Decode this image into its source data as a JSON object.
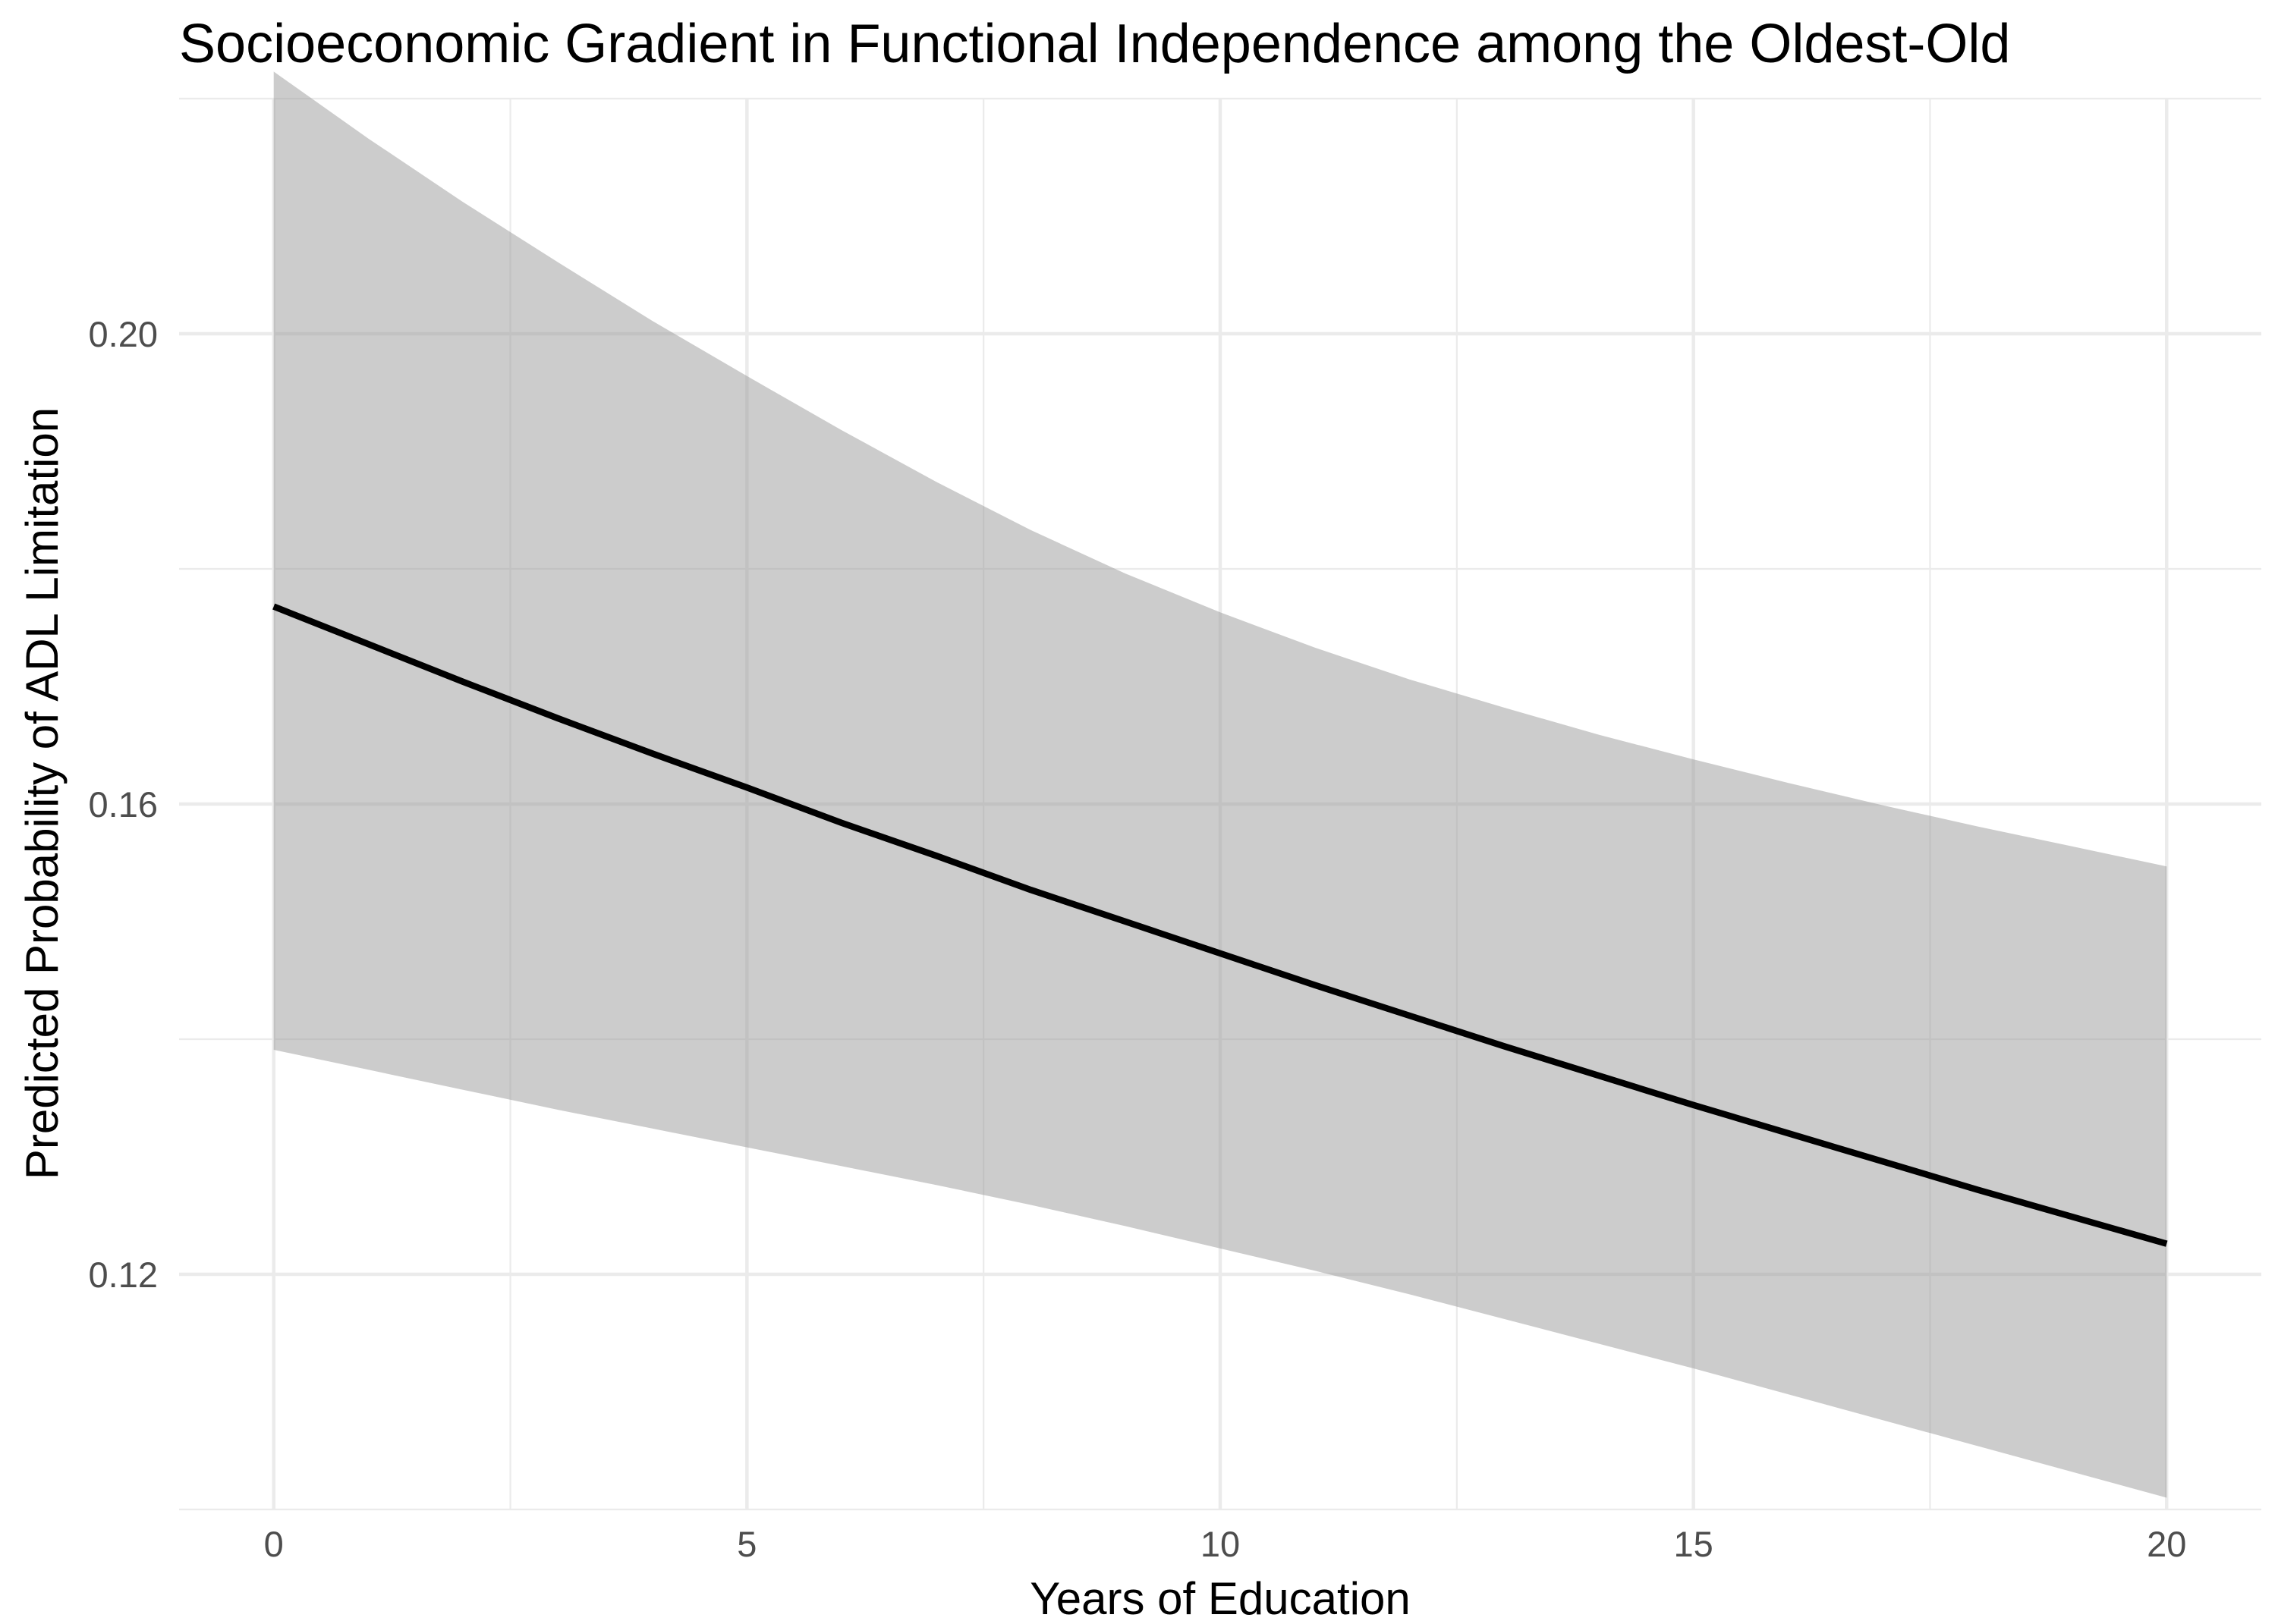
{
  "chart_data": {
    "type": "line",
    "title": "Socioeconomic Gradient in Functional Independence among the Oldest-Old",
    "xlabel": "Years of Education",
    "ylabel": "Predicted Probability of ADL Limitation",
    "xlim": [
      -1,
      21
    ],
    "ylim": [
      0.1,
      0.22
    ],
    "x_ticks": [
      0,
      5,
      10,
      15,
      20
    ],
    "x_tick_labels": [
      "0",
      "5",
      "10",
      "15",
      "20"
    ],
    "x_minor_ticks": [
      2.5,
      7.5,
      12.5,
      17.5
    ],
    "y_ticks": [
      0.12,
      0.16,
      0.2
    ],
    "y_tick_labels": [
      "0.12",
      "0.16",
      "0.20"
    ],
    "y_minor_ticks": [
      0.1,
      0.14,
      0.18,
      0.22
    ],
    "grid": true,
    "legend": "none",
    "colors": {
      "line": "#000000",
      "ribbon": "#999999",
      "grid": "#ebebeb",
      "tick_text": "#4d4d4d"
    },
    "series": [
      {
        "x": [
          0,
          1,
          2,
          3,
          4,
          5,
          6,
          7,
          8,
          9,
          10,
          11,
          12,
          13,
          14,
          15,
          16,
          17,
          18,
          19,
          20
        ],
        "values": [
          0.1768,
          0.1736,
          0.1704,
          0.1673,
          0.1643,
          0.1614,
          0.1584,
          0.1556,
          0.1527,
          0.15,
          0.1473,
          0.1446,
          0.142,
          0.1394,
          0.1369,
          0.1344,
          0.132,
          0.1296,
          0.1272,
          0.1249,
          0.1226
        ],
        "lower": [
          0.1391,
          0.1374,
          0.1357,
          0.134,
          0.1324,
          0.1308,
          0.1292,
          0.1276,
          0.1259,
          0.1241,
          0.1222,
          0.1203,
          0.1183,
          0.1162,
          0.1141,
          0.112,
          0.1098,
          0.1076,
          0.1054,
          0.1032,
          0.101
        ],
        "upper": [
          0.2223,
          0.2166,
          0.2112,
          0.2061,
          0.2011,
          0.1964,
          0.1918,
          0.1874,
          0.1833,
          0.1796,
          0.1763,
          0.1733,
          0.1706,
          0.1682,
          0.1659,
          0.1638,
          0.1618,
          0.1599,
          0.1581,
          0.1564,
          0.1547
        ]
      }
    ]
  }
}
